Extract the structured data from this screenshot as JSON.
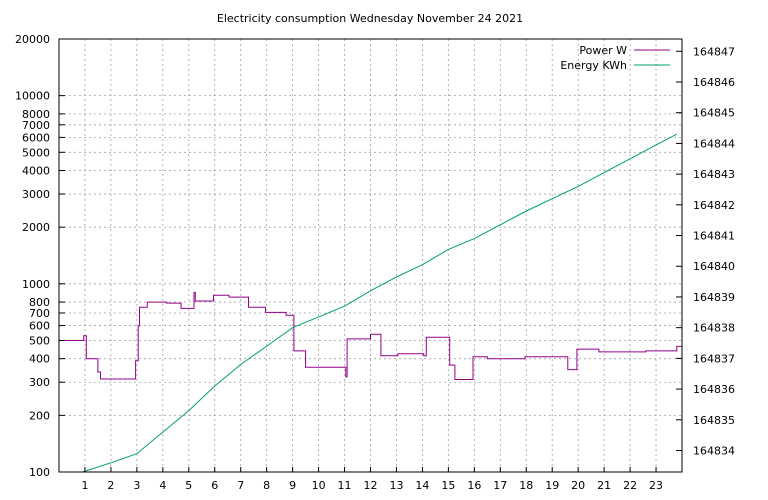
{
  "chart_data": {
    "type": "line",
    "title": "Electricity consumption Wednesday November 24 2021",
    "xlabel": "",
    "ylabel": "",
    "y2label": "",
    "xlim": [
      0,
      24
    ],
    "ylim": [
      100,
      20000
    ],
    "y_scale": "log",
    "y2lim": [
      164833.3,
      164847.4
    ],
    "grid": true,
    "legend_position": "top-right",
    "x_ticks": [
      1,
      2,
      3,
      4,
      5,
      6,
      7,
      8,
      9,
      10,
      11,
      12,
      13,
      14,
      15,
      16,
      17,
      18,
      19,
      20,
      21,
      22,
      23
    ],
    "y_ticks": [
      100,
      200,
      300,
      400,
      500,
      600,
      700,
      800,
      1000,
      2000,
      3000,
      4000,
      5000,
      6000,
      7000,
      8000,
      10000,
      20000
    ],
    "y2_ticks": [
      164834,
      164835,
      164836,
      164837,
      164838,
      164839,
      164840,
      164841,
      164842,
      164843,
      164844,
      164845,
      164846,
      164847
    ],
    "series": [
      {
        "name": "Power W",
        "axis": "left",
        "color": "#94008c",
        "step": true,
        "x": [
          0,
          0.95,
          1.05,
          1.5,
          1.6,
          2.95,
          3.05,
          3.1,
          3.4,
          4.15,
          4.7,
          5.2,
          5.25,
          5.95,
          6.55,
          7.3,
          7.95,
          8.75,
          9.05,
          9.5,
          11.05,
          11.1,
          12.0,
          12.4,
          13.05,
          14.05,
          14.15,
          14.95,
          15.05,
          15.25,
          15.95,
          16.5,
          17.95,
          19.6,
          19.95,
          20.8,
          21.6,
          22.6,
          23.8
        ],
        "y": [
          500,
          530,
          400,
          340,
          312,
          390,
          600,
          750,
          800,
          790,
          740,
          900,
          810,
          870,
          850,
          750,
          705,
          680,
          440,
          360,
          320,
          510,
          540,
          415,
          425,
          415,
          520,
          520,
          370,
          310,
          410,
          400,
          410,
          350,
          450,
          435,
          435,
          440,
          465
        ]
      },
      {
        "name": "Energy KWh",
        "axis": "right",
        "color": "#009e73",
        "x": [
          0.9,
          2.0,
          3.0,
          4.0,
          5.0,
          6.0,
          7.0,
          8.0,
          9.0,
          10.0,
          11.0,
          12.0,
          13.0,
          14.0,
          15.0,
          16.0,
          17.0,
          18.0,
          19.0,
          20.0,
          21.0,
          22.0,
          23.0,
          23.8
        ],
        "y": [
          164833.3,
          164833.6,
          164833.9,
          164834.6,
          164835.3,
          164836.1,
          164836.8,
          164837.4,
          164838.0,
          164838.35,
          164838.7,
          164839.2,
          164839.65,
          164840.05,
          164840.55,
          164840.9,
          164841.35,
          164841.8,
          164842.2,
          164842.6,
          164843.05,
          164843.5,
          164843.95,
          164844.3
        ]
      }
    ]
  }
}
